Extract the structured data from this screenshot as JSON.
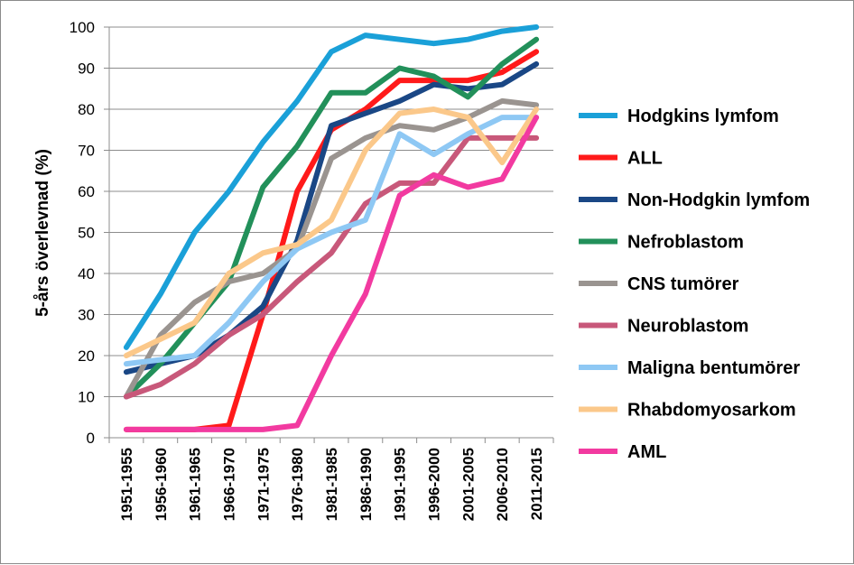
{
  "chart_data": {
    "type": "line",
    "title": "",
    "xlabel": "",
    "ylabel": "5-års överlevnad (%)",
    "ylim": [
      0,
      100
    ],
    "ytick_step": 10,
    "grid": true,
    "legend_position": "right",
    "categories": [
      "1951-1955",
      "1956-1960",
      "1961-1965",
      "1966-1970",
      "1971-1975",
      "1976-1980",
      "1981-1985",
      "1986-1990",
      "1991-1995",
      "1996-2000",
      "2001-2005",
      "2006-2010",
      "2011-2015"
    ],
    "series": [
      {
        "name": "Hodgkins lymfom",
        "color": "#1aa0d8",
        "values": [
          22,
          35,
          50,
          60,
          72,
          82,
          94,
          98,
          97,
          96,
          97,
          99,
          100
        ]
      },
      {
        "name": "ALL",
        "color": "#ff1a1a",
        "values": [
          2,
          2,
          2,
          3,
          30,
          60,
          75,
          80,
          87,
          87,
          87,
          89,
          94
        ]
      },
      {
        "name": "Non-Hodgkin lymfom",
        "color": "#1a4785",
        "values": [
          16,
          18,
          20,
          25,
          32,
          48,
          76,
          79,
          82,
          86,
          85,
          86,
          91
        ]
      },
      {
        "name": "Nefroblastom",
        "color": "#22905a",
        "values": [
          10,
          18,
          28,
          38,
          61,
          71,
          84,
          84,
          90,
          88,
          83,
          91,
          97
        ]
      },
      {
        "name": "CNS tumörer",
        "color": "#9a9490",
        "values": [
          10,
          25,
          33,
          38,
          40,
          46,
          68,
          73,
          76,
          75,
          78,
          82,
          81
        ]
      },
      {
        "name": "Neuroblastom",
        "color": "#c8587a",
        "values": [
          10,
          13,
          18,
          25,
          30,
          38,
          45,
          57,
          62,
          62,
          73,
          73,
          73
        ]
      },
      {
        "name": "Maligna bentumörer",
        "color": "#8ec8f4",
        "values": [
          18,
          19,
          20,
          28,
          38,
          46,
          50,
          53,
          74,
          69,
          74,
          78,
          78
        ]
      },
      {
        "name": "Rhabdomyosarkom",
        "color": "#fbc88a",
        "values": [
          20,
          24,
          28,
          40,
          45,
          47,
          53,
          70,
          79,
          80,
          78,
          67,
          80
        ]
      },
      {
        "name": "AML",
        "color": "#f23aa0",
        "values": [
          2,
          2,
          2,
          2,
          2,
          3,
          20,
          35,
          59,
          64,
          61,
          63,
          78
        ]
      }
    ]
  }
}
